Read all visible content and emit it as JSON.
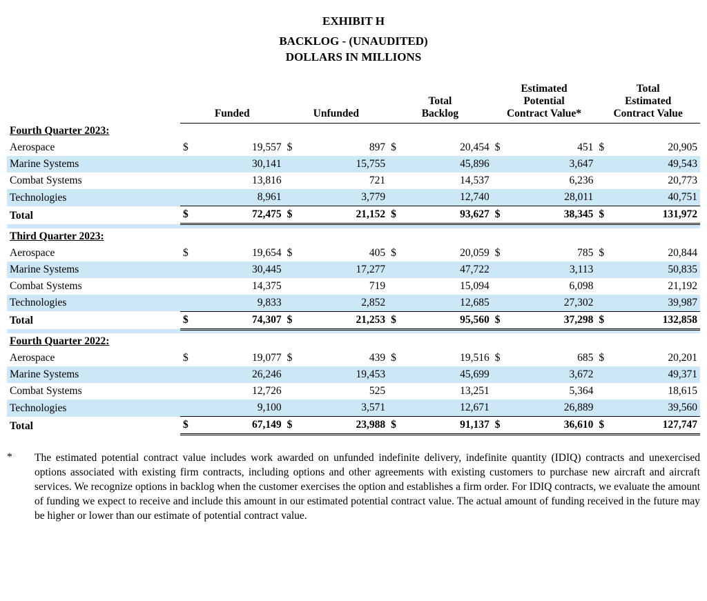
{
  "titles": {
    "exhibit": "EXHIBIT H",
    "line1": "BACKLOG - (UNAUDITED)",
    "line2": "DOLLARS IN MILLIONS"
  },
  "columns": {
    "c1": "Funded",
    "c2": "Unfunded",
    "c3": "Total\nBacklog",
    "c4": "Estimated\nPotential\nContract Value*",
    "c5": "Total\nEstimated\nContract Value"
  },
  "colors": {
    "shade": "#cce7f5",
    "background": "#ffffff",
    "text": "#000000"
  },
  "sections": [
    {
      "header": "Fourth Quarter 2023:",
      "rows": [
        {
          "label": "Aerospace",
          "sym": "$",
          "v": [
            "19,557",
            "897",
            "20,454",
            "451",
            "20,905"
          ],
          "shade": false
        },
        {
          "label": "Marine Systems",
          "sym": "",
          "v": [
            "30,141",
            "15,755",
            "45,896",
            "3,647",
            "49,543"
          ],
          "shade": true
        },
        {
          "label": "Combat Systems",
          "sym": "",
          "v": [
            "13,816",
            "721",
            "14,537",
            "6,236",
            "20,773"
          ],
          "shade": false
        },
        {
          "label": "Technologies",
          "sym": "",
          "v": [
            "8,961",
            "3,779",
            "12,740",
            "28,011",
            "40,751"
          ],
          "shade": true
        }
      ],
      "total": {
        "label": "Total",
        "sym": "$",
        "v": [
          "72,475",
          "21,152",
          "93,627",
          "38,345",
          "131,972"
        ]
      },
      "spacerShade": true
    },
    {
      "header": "Third Quarter 2023:",
      "rows": [
        {
          "label": "Aerospace",
          "sym": "$",
          "v": [
            "19,654",
            "405",
            "20,059",
            "785",
            "20,844"
          ],
          "shade": false
        },
        {
          "label": "Marine Systems",
          "sym": "",
          "v": [
            "30,445",
            "17,277",
            "47,722",
            "3,113",
            "50,835"
          ],
          "shade": true
        },
        {
          "label": "Combat Systems",
          "sym": "",
          "v": [
            "14,375",
            "719",
            "15,094",
            "6,098",
            "21,192"
          ],
          "shade": false
        },
        {
          "label": "Technologies",
          "sym": "",
          "v": [
            "9,833",
            "2,852",
            "12,685",
            "27,302",
            "39,987"
          ],
          "shade": true
        }
      ],
      "total": {
        "label": "Total",
        "sym": "$",
        "v": [
          "74,307",
          "21,253",
          "95,560",
          "37,298",
          "132,858"
        ]
      },
      "spacerShade": true
    },
    {
      "header": "Fourth Quarter 2022:",
      "rows": [
        {
          "label": "Aerospace",
          "sym": "$",
          "v": [
            "19,077",
            "439",
            "19,516",
            "685",
            "20,201"
          ],
          "shade": false
        },
        {
          "label": "Marine Systems",
          "sym": "",
          "v": [
            "26,246",
            "19,453",
            "45,699",
            "3,672",
            "49,371"
          ],
          "shade": true
        },
        {
          "label": "Combat Systems",
          "sym": "",
          "v": [
            "12,726",
            "525",
            "13,251",
            "5,364",
            "18,615"
          ],
          "shade": false
        },
        {
          "label": "Technologies",
          "sym": "",
          "v": [
            "9,100",
            "3,571",
            "12,671",
            "26,889",
            "39,560"
          ],
          "shade": true
        }
      ],
      "total": {
        "label": "Total",
        "sym": "$",
        "v": [
          "67,149",
          "23,988",
          "91,137",
          "36,610",
          "127,747"
        ]
      },
      "spacerShade": false
    }
  ],
  "footnote": {
    "marker": "*",
    "text": "The estimated potential contract value includes work awarded on unfunded indefinite delivery, indefinite quantity (IDIQ) contracts and unexercised options associated with existing firm contracts, including options and other agreements with existing customers to purchase new aircraft and aircraft services. We recognize options in backlog when the customer exercises the option and establishes a firm order. For IDIQ contracts, we evaluate the amount of funding we expect to receive and include this amount in our estimated potential contract value. The actual amount of funding received in the future may be higher or lower than our estimate of potential contract value."
  }
}
